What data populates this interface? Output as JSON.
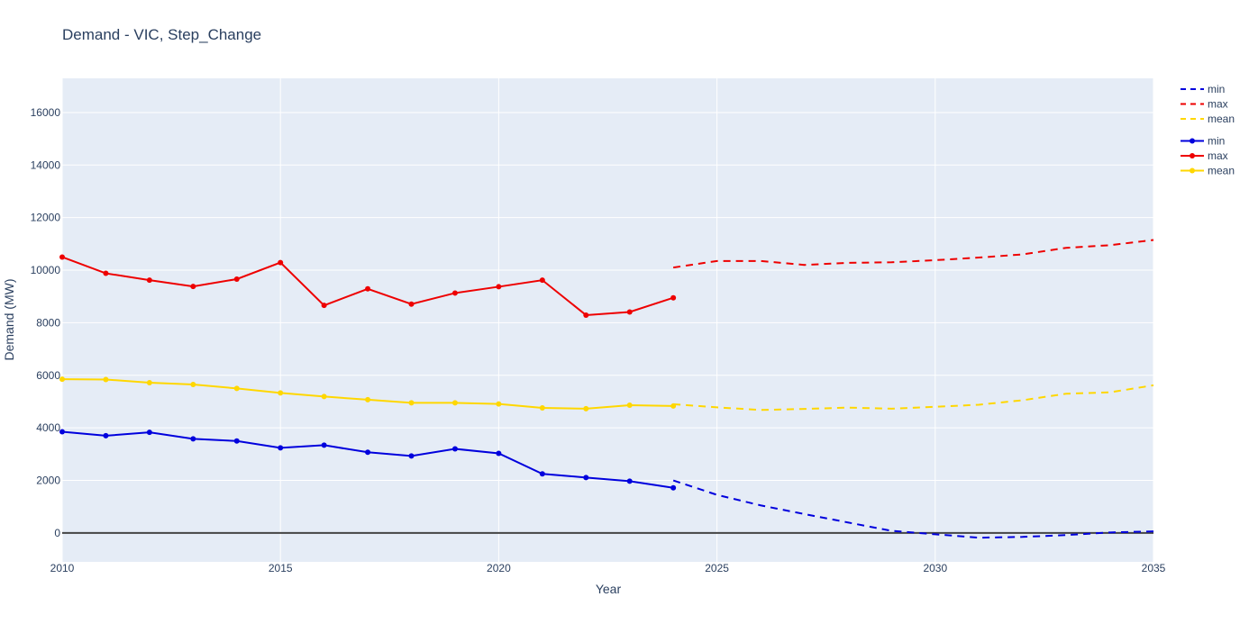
{
  "chart_data": {
    "type": "line",
    "title": "Demand - VIC, Step_Change",
    "xlabel": "Year",
    "ylabel": "Demand (MW)",
    "xlim": [
      2010,
      2035
    ],
    "ylim": [
      -1100,
      17300
    ],
    "x_ticks": [
      2010,
      2015,
      2020,
      2025,
      2030,
      2035
    ],
    "y_ticks": [
      0,
      2000,
      4000,
      6000,
      8000,
      10000,
      12000,
      14000,
      16000
    ],
    "grid": true,
    "zero_line": true,
    "legend_position": "right",
    "series": [
      {
        "name": "min",
        "style": "dash",
        "color": "#0000dd",
        "group": "projection",
        "x": [
          2024,
          2025,
          2026,
          2027,
          2028,
          2029,
          2030,
          2031,
          2032,
          2033,
          2034,
          2035
        ],
        "y": [
          2000,
          1450,
          1050,
          720,
          400,
          80,
          -50,
          -180,
          -150,
          -80,
          20,
          60
        ]
      },
      {
        "name": "max",
        "style": "dash",
        "color": "#ee0000",
        "group": "projection",
        "x": [
          2024,
          2025,
          2026,
          2027,
          2028,
          2029,
          2030,
          2031,
          2032,
          2033,
          2034,
          2035
        ],
        "y": [
          10100,
          10350,
          10350,
          10200,
          10280,
          10300,
          10380,
          10480,
          10600,
          10850,
          10950,
          11150
        ]
      },
      {
        "name": "mean",
        "style": "dash",
        "color": "#ffd700",
        "group": "projection",
        "x": [
          2024,
          2025,
          2026,
          2027,
          2028,
          2029,
          2030,
          2031,
          2032,
          2033,
          2034,
          2035
        ],
        "y": [
          4900,
          4780,
          4680,
          4720,
          4770,
          4730,
          4800,
          4880,
          5050,
          5300,
          5350,
          5620
        ]
      },
      {
        "name": "min",
        "style": "solid-markers",
        "color": "#0000dd",
        "group": "historical",
        "x": [
          2010,
          2011,
          2012,
          2013,
          2014,
          2015,
          2016,
          2017,
          2018,
          2019,
          2020,
          2021,
          2022,
          2023,
          2024
        ],
        "y": [
          3850,
          3700,
          3830,
          3580,
          3500,
          3240,
          3340,
          3070,
          2930,
          3200,
          3030,
          2250,
          2110,
          1970,
          1720
        ]
      },
      {
        "name": "max",
        "style": "solid-markers",
        "color": "#ee0000",
        "group": "historical",
        "x": [
          2010,
          2011,
          2012,
          2013,
          2014,
          2015,
          2016,
          2017,
          2018,
          2019,
          2020,
          2021,
          2022,
          2023,
          2024
        ],
        "y": [
          10500,
          9880,
          9620,
          9380,
          9660,
          10290,
          8660,
          9290,
          8710,
          9130,
          9370,
          9620,
          8290,
          8410,
          8950
        ]
      },
      {
        "name": "mean",
        "style": "solid-markers",
        "color": "#ffd700",
        "group": "historical",
        "x": [
          2010,
          2011,
          2012,
          2013,
          2014,
          2015,
          2016,
          2017,
          2018,
          2019,
          2020,
          2021,
          2022,
          2023,
          2024
        ],
        "y": [
          5850,
          5840,
          5720,
          5650,
          5500,
          5330,
          5190,
          5070,
          4950,
          4950,
          4910,
          4760,
          4730,
          4860,
          4830
        ]
      }
    ]
  }
}
